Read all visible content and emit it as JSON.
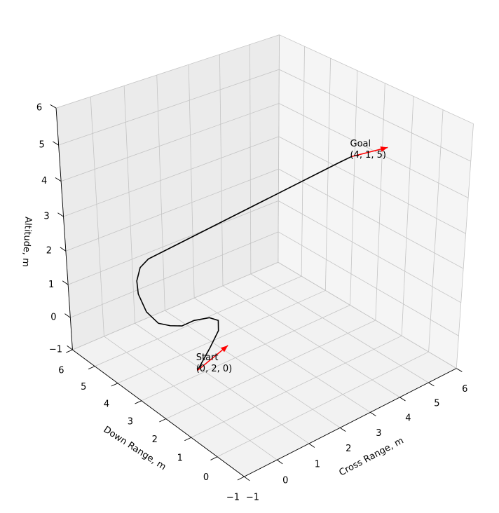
{
  "chart_data": {
    "type": "line3d",
    "xlabel": "Cross Range, m",
    "ylabel": "Down Range, m",
    "zlabel": "Altitude, m",
    "xlim": [
      -1,
      6
    ],
    "ylim": [
      -1,
      6
    ],
    "zlim": [
      -1,
      6
    ],
    "xticks": [
      {
        "value": -1,
        "label": "−1"
      },
      0,
      1,
      2,
      3,
      4,
      5,
      6
    ],
    "yticks": [
      {
        "value": -1,
        "label": "−1"
      },
      0,
      1,
      2,
      3,
      4,
      5,
      6
    ],
    "zticks": [
      {
        "value": -1,
        "label": "−1"
      },
      0,
      1,
      2,
      3,
      4,
      5,
      6
    ],
    "grid": true,
    "series": [
      {
        "color": "#000000",
        "x": [
          0,
          0.4,
          0.67,
          0.67,
          0.4,
          0,
          0,
          0,
          0,
          0,
          0,
          0,
          0,
          0,
          3.7,
          4
        ],
        "y": [
          2,
          2,
          2,
          2,
          2,
          2.09,
          2.58,
          3.06,
          3.55,
          4.04,
          4.36,
          4.4,
          4.23,
          3.87,
          1.1,
          1
        ],
        "z": [
          0,
          0.5,
          0.89,
          1.19,
          1.38,
          1.42,
          1.02,
          0.79,
          0.62,
          0.72,
          1.1,
          1.47,
          1.94,
          2.35,
          4.9,
          5
        ]
      }
    ],
    "annotations": [
      {
        "lines": [
          "Start",
          "(0, 2, 0)"
        ],
        "point": [
          0,
          2,
          0
        ],
        "arrow": [
          0.8,
          -0.2,
          0.5
        ],
        "arrow_color": "#ff0000"
      },
      {
        "lines": [
          "Goal",
          "(4, 1, 5)"
        ],
        "point": [
          4,
          1,
          5
        ],
        "arrow": [
          1,
          -0.2,
          0
        ],
        "arrow_color": "#ff0000"
      }
    ]
  }
}
